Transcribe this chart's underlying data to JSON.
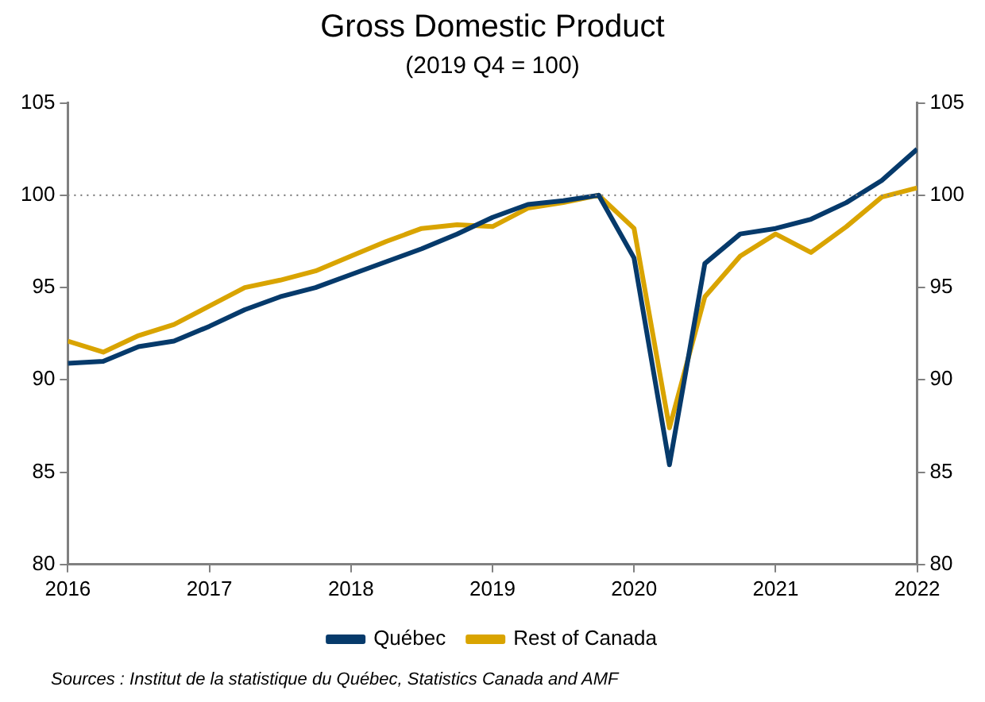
{
  "chart_data": {
    "type": "line",
    "title": "Gross Domestic Product",
    "subtitle": "(2019 Q4 = 100)",
    "x": [
      2016,
      2016.25,
      2016.5,
      2016.75,
      2017,
      2017.25,
      2017.5,
      2017.75,
      2018,
      2018.25,
      2018.5,
      2018.75,
      2019,
      2019.25,
      2019.5,
      2019.75,
      2020,
      2020.25,
      2020.5,
      2020.75,
      2021,
      2021.25,
      2021.5,
      2021.75,
      2022
    ],
    "series": [
      {
        "name": "Québec",
        "color": "#063a6b",
        "values": [
          90.9,
          91.0,
          91.8,
          92.1,
          92.9,
          93.8,
          94.5,
          95.0,
          95.7,
          96.4,
          97.1,
          97.9,
          98.8,
          99.5,
          99.7,
          100.0,
          96.6,
          85.4,
          96.3,
          97.9,
          98.2,
          98.7,
          99.6,
          100.8,
          102.5
        ]
      },
      {
        "name": "Rest of Canada",
        "color": "#d9a400",
        "values": [
          92.1,
          91.5,
          92.4,
          93.0,
          94.0,
          95.0,
          95.4,
          95.9,
          96.7,
          97.5,
          98.2,
          98.4,
          98.3,
          99.3,
          99.6,
          100.0,
          98.2,
          87.4,
          94.5,
          96.7,
          97.9,
          96.9,
          98.3,
          99.9,
          100.4
        ]
      }
    ],
    "xlim": [
      2016,
      2022
    ],
    "xticks": [
      2016,
      2017,
      2018,
      2019,
      2020,
      2021,
      2022
    ],
    "ylim": [
      80,
      105
    ],
    "yticks": [
      80,
      85,
      90,
      95,
      100,
      105
    ],
    "y2lim": [
      80,
      105
    ],
    "y2ticks": [
      80,
      85,
      90,
      95,
      100,
      105
    ],
    "ref_lines": [
      {
        "axis": "y",
        "value": 100,
        "color": "#808080",
        "line_style": "dotted"
      }
    ],
    "annotations": [
      "Sources : Institut de la statistique du Québec, Statistics Canada and AMF"
    ],
    "grid": false,
    "legend": "bottom",
    "marker": "none",
    "line_style": "solid"
  }
}
